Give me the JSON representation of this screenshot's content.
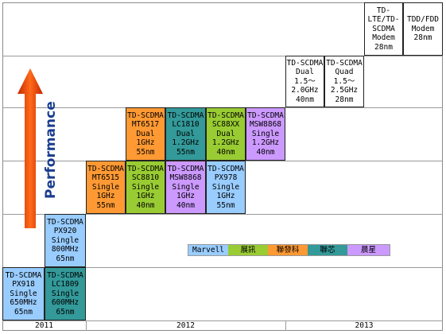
{
  "years": [
    "2011",
    "2012",
    "2013"
  ],
  "performance_label": "Performance",
  "colors": {
    "marvell": "#99ccff",
    "spreadtrum": "#99cc33",
    "mediatek": "#ff9933",
    "leadcore": "#339999",
    "mstar": "#cc99ff"
  },
  "legend": [
    {
      "label": "Marvell",
      "color": "#99ccff"
    },
    {
      "label": "展訊",
      "color": "#99cc33"
    },
    {
      "label": "聯發科",
      "color": "#ff9933"
    },
    {
      "label": "聯芯",
      "color": "#339999"
    },
    {
      "label": "晨星",
      "color": "#cc99ff"
    }
  ],
  "chips": [
    {
      "id": "px918",
      "vendor": "marvell",
      "lines": [
        "TD-SCDMA",
        "PX918",
        "Single",
        "650MHz",
        "65nm"
      ]
    },
    {
      "id": "lc1809",
      "vendor": "leadcore",
      "lines": [
        "TD-SCDMA",
        "LC1809",
        "Single",
        "600MHz",
        "65nm"
      ]
    },
    {
      "id": "px920",
      "vendor": "marvell",
      "lines": [
        "TD-SCDMA",
        "PX920",
        "Single",
        "800MHz",
        "65nm"
      ]
    },
    {
      "id": "mt6515",
      "vendor": "mediatek",
      "lines": [
        "TD-SCDMA",
        "MT6515",
        "Single",
        "1GHz",
        "55nm"
      ]
    },
    {
      "id": "sc8810",
      "vendor": "spreadtrum",
      "lines": [
        "TD-SCDMA",
        "SC8810",
        "Single",
        "1GHz",
        "40nm"
      ]
    },
    {
      "id": "msw8868-1",
      "vendor": "mstar",
      "lines": [
        "TD-SCDMA",
        "MSW8868",
        "Single",
        "1GHz",
        "40nm"
      ]
    },
    {
      "id": "px978",
      "vendor": "marvell",
      "lines": [
        "TD-SCDMA",
        "PX978",
        "Single",
        "1GHz",
        "55nm"
      ]
    },
    {
      "id": "mt6517",
      "vendor": "mediatek",
      "lines": [
        "TD-SCDMA",
        "MT6517",
        "Dual",
        "1GHz",
        "55nm"
      ]
    },
    {
      "id": "lc1810",
      "vendor": "leadcore",
      "lines": [
        "TD-SCDMA",
        "LC1810",
        "Dual",
        "1.2GHz",
        "55nm"
      ]
    },
    {
      "id": "sc88xx",
      "vendor": "spreadtrum",
      "lines": [
        "TD-SCDMA",
        "SC88XX",
        "Dual",
        "1.2GHz",
        "40nm"
      ]
    },
    {
      "id": "msw8868-2",
      "vendor": "mstar",
      "lines": [
        "TD-SCDMA",
        "MSW8868",
        "Single",
        "1.2GHz",
        "40nm"
      ]
    },
    {
      "id": "dual",
      "vendor": "none",
      "lines": [
        "TD-SCDMA",
        "Dual",
        "1.5～",
        "2.0GHz",
        "40nm"
      ]
    },
    {
      "id": "quad",
      "vendor": "none",
      "lines": [
        "TD-SCDMA",
        "Quad",
        "1.5～",
        "2.5GHz",
        "28nm"
      ]
    },
    {
      "id": "lte-td",
      "vendor": "none",
      "lines": [
        "TD-",
        "LTE/TD-",
        "SCDMA",
        "Modem",
        "28nm"
      ]
    },
    {
      "id": "tdd-fdd",
      "vendor": "none",
      "lines": [
        "TDD/FDD",
        "Modem",
        "28nm"
      ]
    }
  ]
}
